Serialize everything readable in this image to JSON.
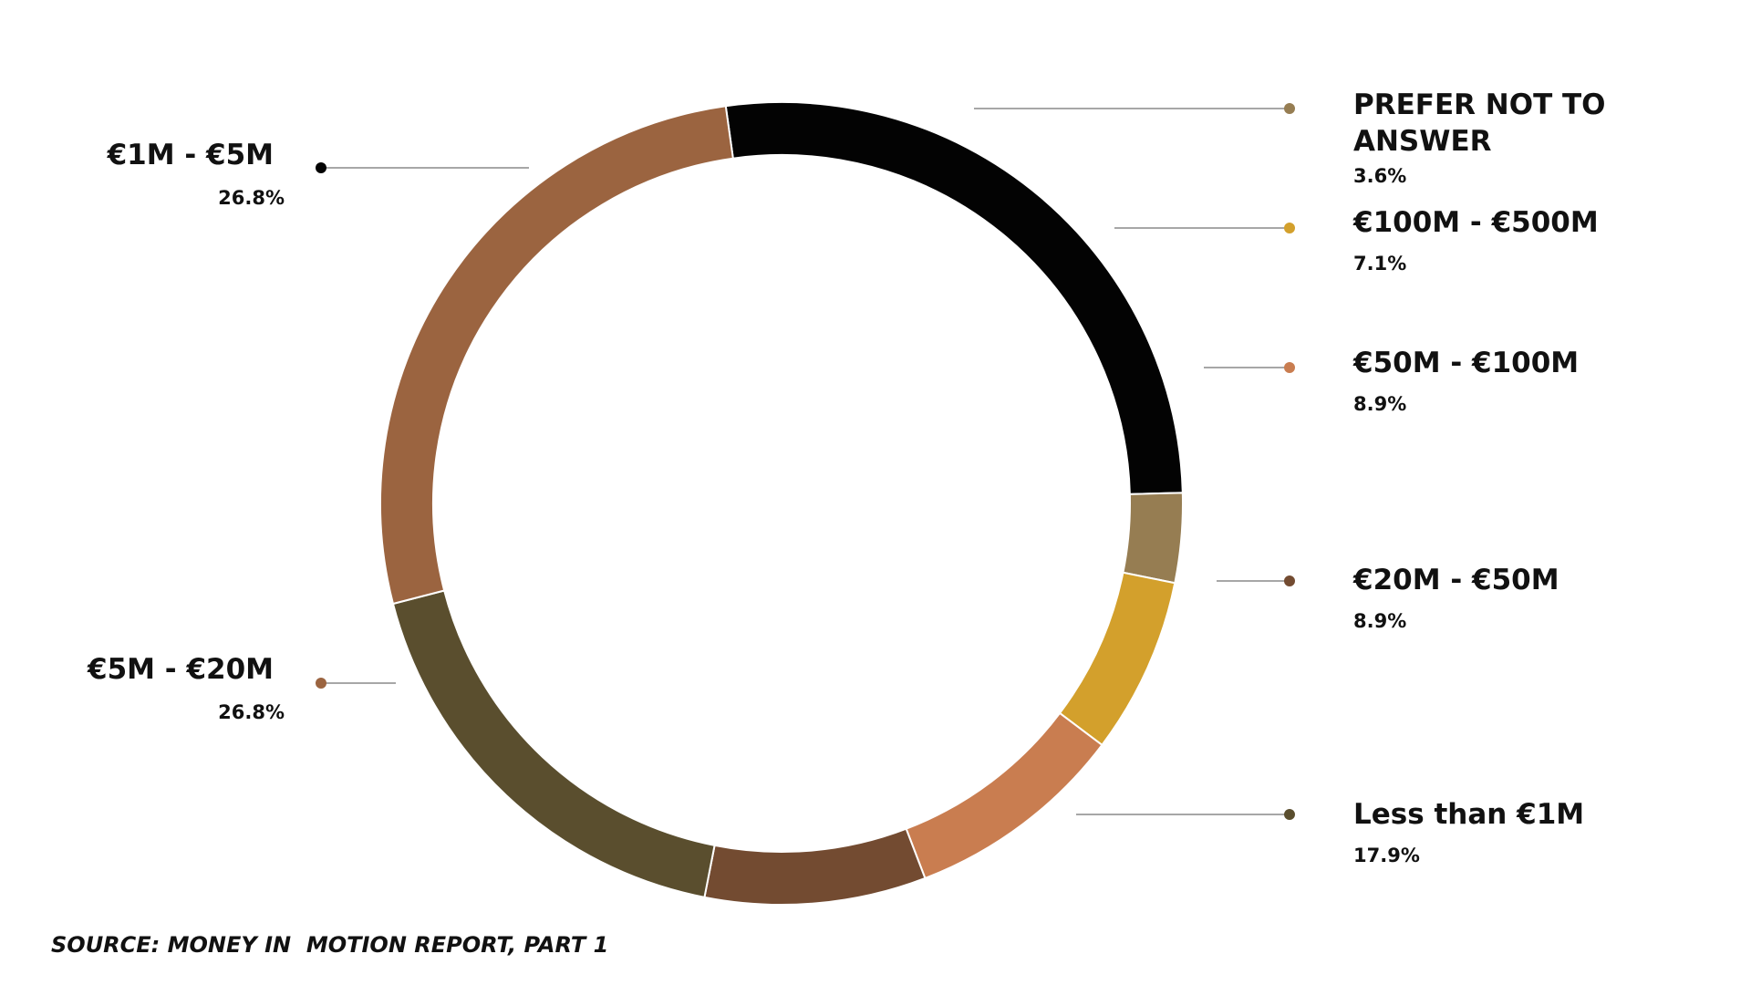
{
  "chart_data": {
    "type": "pie",
    "variant": "donut",
    "title": "",
    "slices": [
      {
        "label": "€1M - €5M",
        "percent_label": "26.8%",
        "value": 26.8,
        "color": "#030303"
      },
      {
        "label": "PREFER NOT TO ANSWER",
        "percent_label": "3.6%",
        "value": 3.6,
        "color": "#967D52"
      },
      {
        "label": "€100M - €500M",
        "percent_label": "7.1%",
        "value": 7.1,
        "color": "#D3A02C"
      },
      {
        "label": "€50M - €100M",
        "percent_label": "8.9%",
        "value": 8.9,
        "color": "#C97D50"
      },
      {
        "label": "€20M - €50M",
        "percent_label": "8.9%",
        "value": 8.9,
        "color": "#734B31"
      },
      {
        "label": "Less than €1M",
        "percent_label": "17.9%",
        "value": 17.9,
        "color": "#5A4E2E"
      },
      {
        "label": "€5M - €20M",
        "percent_label": "26.8%",
        "value": 26.8,
        "color": "#9B6440"
      }
    ]
  },
  "source_note": "SOURCE: MONEY IN  MOTION REPORT, PART 1"
}
